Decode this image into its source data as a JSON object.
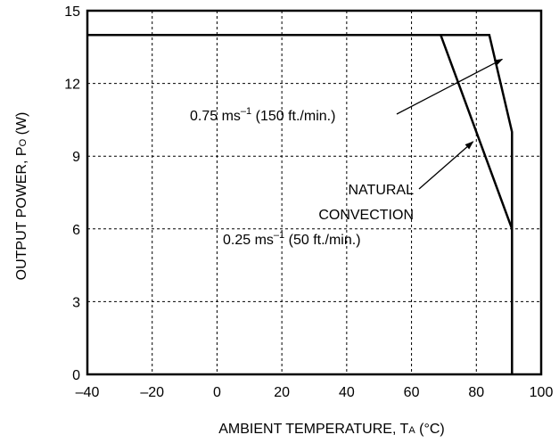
{
  "chart_data": {
    "type": "line",
    "title": "",
    "xlabel": {
      "main": "AMBIENT TEMPERATURE, T",
      "sub": "A",
      "unit": " (°C)"
    },
    "ylabel": {
      "main": "OUTPUT POWER, P",
      "sub": "O",
      "unit": " (W)"
    },
    "xlim": [
      -40,
      100
    ],
    "ylim": [
      0,
      15
    ],
    "x_ticks": [
      -40,
      -20,
      0,
      20,
      40,
      60,
      80,
      100
    ],
    "x_tick_labels": [
      "–40",
      "–20",
      "0",
      "20",
      "40",
      "60",
      "80",
      "100"
    ],
    "y_ticks": [
      0,
      3,
      6,
      9,
      12,
      15
    ],
    "y_tick_labels": [
      "0",
      "3",
      "6",
      "9",
      "12",
      "15"
    ],
    "grid": true,
    "grid_style": "dashed",
    "series": [
      {
        "x": [
          -40,
          84,
          91,
          91
        ],
        "y": [
          14,
          14,
          10,
          0
        ]
      },
      {
        "x": [
          -40,
          69,
          91,
          91
        ],
        "y": [
          14,
          14,
          6,
          0
        ]
      }
    ],
    "annotations": [
      {
        "text_main": "0.75 ms",
        "text_sup": "–1",
        "text_rest": " (150  ft./min.)",
        "arrow_to": [
          88,
          13
        ]
      },
      {
        "text_lines": [
          "NATURAL",
          "CONVECTION"
        ],
        "arrow_to": [
          79,
          9.6
        ]
      },
      {
        "text_main": "0.25 ms",
        "text_sup": "–1",
        "text_rest": " (50 ft./min.)"
      }
    ]
  }
}
